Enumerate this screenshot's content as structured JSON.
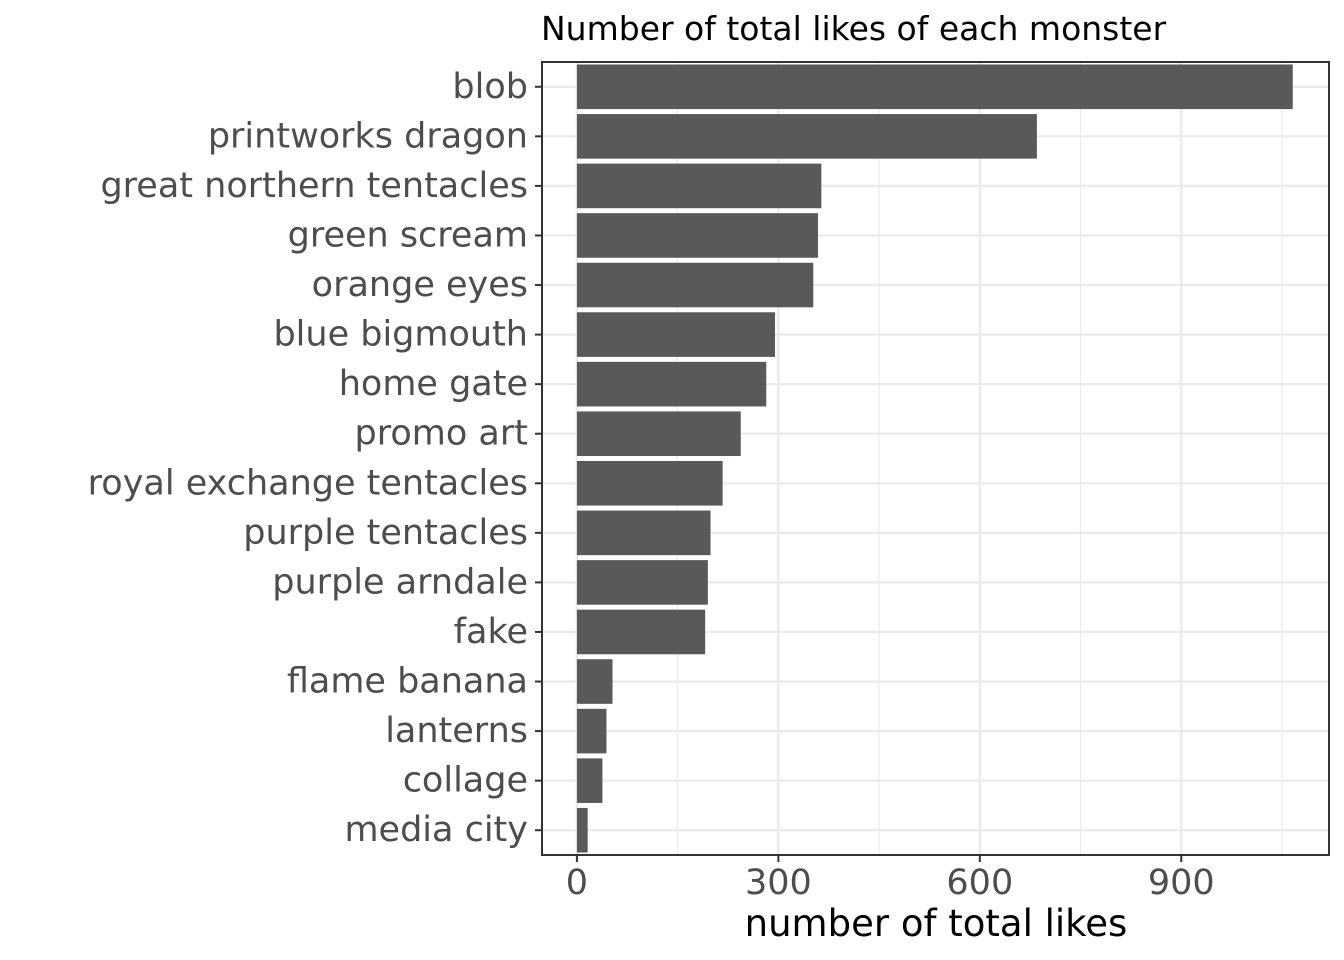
{
  "chart_data": {
    "type": "bar",
    "orientation": "horizontal",
    "title": "Number of total likes of each monster",
    "xlabel": "number of total likes",
    "ylabel": "",
    "categories": [
      "blob",
      "printworks dragon",
      "great northern tentacles",
      "green scream",
      "orange eyes",
      "blue bigmouth",
      "home gate",
      "promo art",
      "royal exchange tentacles",
      "purple tentacles",
      "purple arndale",
      "fake",
      "flame banana",
      "lanterns",
      "collage",
      "media city"
    ],
    "values": [
      1066,
      685,
      364,
      359,
      352,
      295,
      282,
      244,
      217,
      199,
      195,
      191,
      53,
      44,
      38,
      16
    ],
    "xlim": [
      -52,
      1120
    ],
    "xticks": [
      0,
      300,
      600,
      900
    ],
    "xtick_labels": [
      "0",
      "300",
      "600",
      "900"
    ],
    "grid": true,
    "legend": "none",
    "colors": {
      "bar": "#595959",
      "grid": "#ebebeb",
      "panel_border": "#333333",
      "tick_text": "#4d4d4d",
      "title_text": "#000000"
    }
  }
}
